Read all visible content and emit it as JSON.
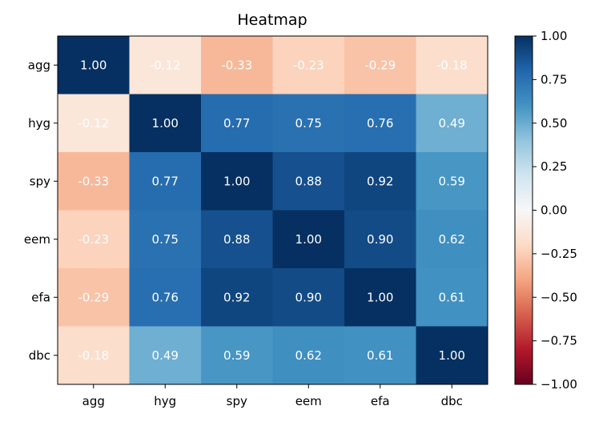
{
  "chart_data": {
    "type": "heatmap",
    "title": "Heatmap",
    "rows": [
      "agg",
      "hyg",
      "spy",
      "eem",
      "efa",
      "dbc"
    ],
    "columns": [
      "agg",
      "hyg",
      "spy",
      "eem",
      "efa",
      "dbc"
    ],
    "values": [
      [
        1.0,
        -0.12,
        -0.33,
        -0.23,
        -0.29,
        -0.18
      ],
      [
        -0.12,
        1.0,
        0.77,
        0.75,
        0.76,
        0.49
      ],
      [
        -0.33,
        0.77,
        1.0,
        0.88,
        0.92,
        0.59
      ],
      [
        -0.23,
        0.75,
        0.88,
        1.0,
        0.9,
        0.62
      ],
      [
        -0.29,
        0.76,
        0.92,
        0.9,
        1.0,
        0.61
      ],
      [
        -0.18,
        0.49,
        0.59,
        0.62,
        0.61,
        1.0
      ]
    ],
    "value_format": "0.00",
    "colorscale": "RdBu",
    "colorbar": {
      "range": [
        -1.0,
        1.0
      ],
      "ticks": [
        1.0,
        0.75,
        0.5,
        0.25,
        0.0,
        -0.25,
        -0.5,
        -0.75,
        -1.0
      ],
      "tick_labels": [
        "1.00",
        "0.75",
        "0.50",
        "0.25",
        "0.00",
        "−0.25",
        "−0.50",
        "−0.75",
        "−1.00"
      ],
      "position": "right"
    },
    "grid": false
  }
}
